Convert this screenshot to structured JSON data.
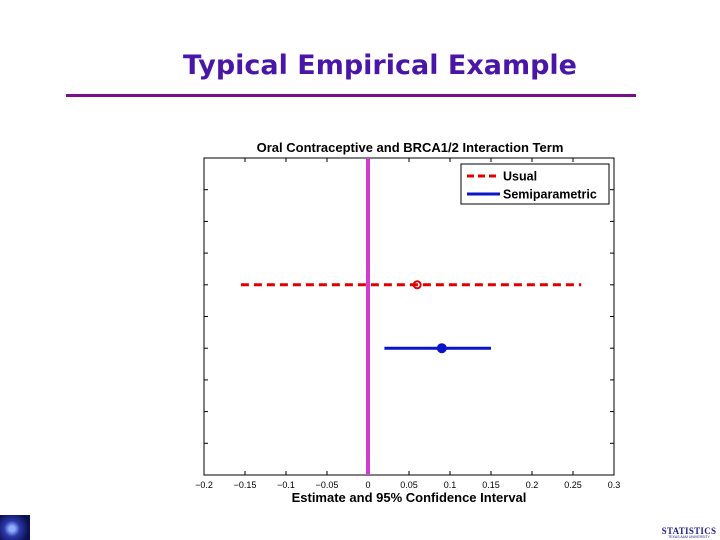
{
  "slide": {
    "title": "Typical Empirical Example",
    "logo_text": "STATISTICS",
    "logo_subtext": "TEXAS A&M UNIVERSITY"
  },
  "colors": {
    "title": "#4a16a8",
    "rule": "#7a0f8c",
    "usual": "#e00000",
    "semiparametric": "#0a14c8",
    "reference_line": "#d23cd2"
  },
  "chart_data": {
    "type": "scatter",
    "title": "Oral Contraceptive and BRCA1/2 Interaction Term",
    "xlabel": "Estimate and 95% Confidence Interval",
    "ylabel": "",
    "xlim": [
      -0.2,
      0.3
    ],
    "ylim": [
      0,
      5
    ],
    "x_ticks": [
      -0.2,
      -0.15,
      -0.1,
      -0.05,
      0,
      0.05,
      0.1,
      0.15,
      0.2,
      0.25,
      0.3
    ],
    "x_tick_labels": [
      "−0.2",
      "−0.15",
      "−0.1",
      "−0.05",
      "0",
      "0.05",
      "0.1",
      "0.15",
      "0.2",
      "0.25",
      "0.3"
    ],
    "y_ticks": [
      0,
      0.5,
      1,
      1.5,
      2,
      2.5,
      3,
      3.5,
      4,
      4.5,
      5
    ],
    "y_tick_labels_shown": false,
    "reference_line_x": 0,
    "legend_position": "top-right",
    "series": [
      {
        "name": "Usual",
        "estimate": 0.06,
        "ci": [
          -0.155,
          0.26
        ],
        "y": 3,
        "line_style": "dashed",
        "marker": "open-circle",
        "color": "#e00000"
      },
      {
        "name": "Semiparametric",
        "estimate": 0.09,
        "ci": [
          0.02,
          0.15
        ],
        "y": 2,
        "line_style": "solid",
        "marker": "filled-circle",
        "color": "#0a14c8"
      }
    ]
  }
}
